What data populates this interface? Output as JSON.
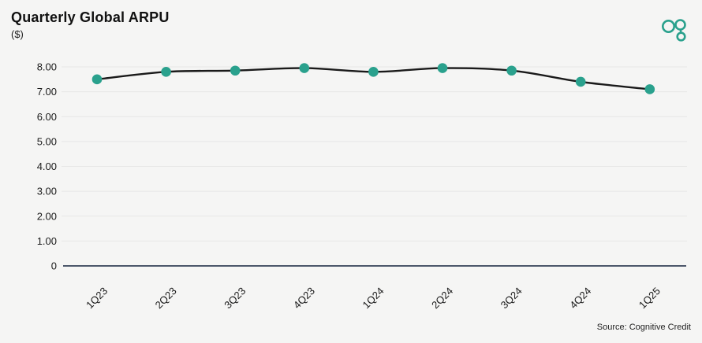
{
  "header": {
    "title": "Quarterly Global ARPU",
    "subtitle": "($)"
  },
  "footer": {
    "source": "Source: Cognitive Credit"
  },
  "logo": {
    "name": "cognitive-credit-logo"
  },
  "colors": {
    "background": "#f5f5f4",
    "accent": "#2aa18d",
    "line": "#1a1a1a",
    "marker": "#2aa18d",
    "grid": "#e7e7e6",
    "axis_baseline": "#14233c",
    "tick_text": "#1a1a1a"
  },
  "chart_data": {
    "type": "line",
    "title": "Quarterly Global ARPU",
    "subtitle": "($)",
    "categories": [
      "1Q23",
      "2Q23",
      "3Q23",
      "4Q23",
      "1Q24",
      "2Q24",
      "3Q24",
      "4Q24",
      "1Q25"
    ],
    "series": [
      {
        "name": "Global ARPU",
        "values": [
          7.5,
          7.8,
          7.85,
          7.95,
          7.8,
          7.95,
          7.85,
          7.4,
          7.1
        ]
      }
    ],
    "xlabel": "",
    "ylabel": "",
    "ylim": [
      0,
      8
    ],
    "yticks": [
      0,
      1,
      2,
      3,
      4,
      5,
      6,
      7,
      8
    ],
    "ytick_labels": [
      "0",
      "1.00",
      "2.00",
      "3.00",
      "4.00",
      "5.00",
      "6.00",
      "7.00",
      "8.00"
    ],
    "grid": true,
    "legend": false,
    "x_label_rotation": -45,
    "marker_style": "circle",
    "smooth": true
  }
}
